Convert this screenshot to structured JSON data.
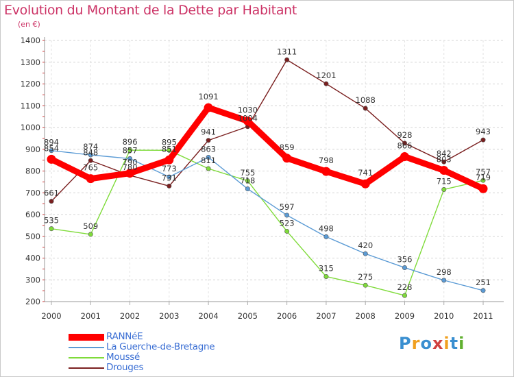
{
  "title": "Evolution du Montant de la Dette par Habitant",
  "subtitle": "(en €)",
  "logo_text": "Proxiti",
  "chart_data": {
    "type": "line",
    "title": "Evolution du Montant de la Dette par Habitant",
    "ylabel": "(en €)",
    "xlabel": "",
    "ylim": [
      200,
      1400
    ],
    "yticks": [
      200,
      300,
      400,
      500,
      600,
      700,
      800,
      900,
      1000,
      1100,
      1200,
      1300,
      1400
    ],
    "categories": [
      "2000",
      "2001",
      "2002",
      "2003",
      "2004",
      "2005",
      "2006",
      "2007",
      "2008",
      "2009",
      "2010",
      "2011"
    ],
    "grid": "horizontal dashed",
    "legend_placement": "bottom-left",
    "series": [
      {
        "name": "RANNéE",
        "color": "#ff0000",
        "values": [
          854,
          765,
          790,
          851,
          1091,
          1030,
          859,
          798,
          741,
          866,
          803,
          719
        ]
      },
      {
        "name": "La Guerche-de-Bretagne",
        "color": "#5b9bd5",
        "values": [
          894,
          874,
          857,
          773,
          863,
          718,
          597,
          498,
          420,
          356,
          298,
          251
        ]
      },
      {
        "name": "Moussé",
        "color": "#7fdb3a",
        "values": [
          535,
          509,
          896,
          895,
          811,
          755,
          523,
          315,
          275,
          228,
          715,
          757
        ]
      },
      {
        "name": "Drouges",
        "color": "#7a1f1f",
        "values": [
          661,
          848,
          780,
          731,
          941,
          1004,
          1311,
          1201,
          1088,
          928,
          842,
          943
        ]
      }
    ]
  }
}
